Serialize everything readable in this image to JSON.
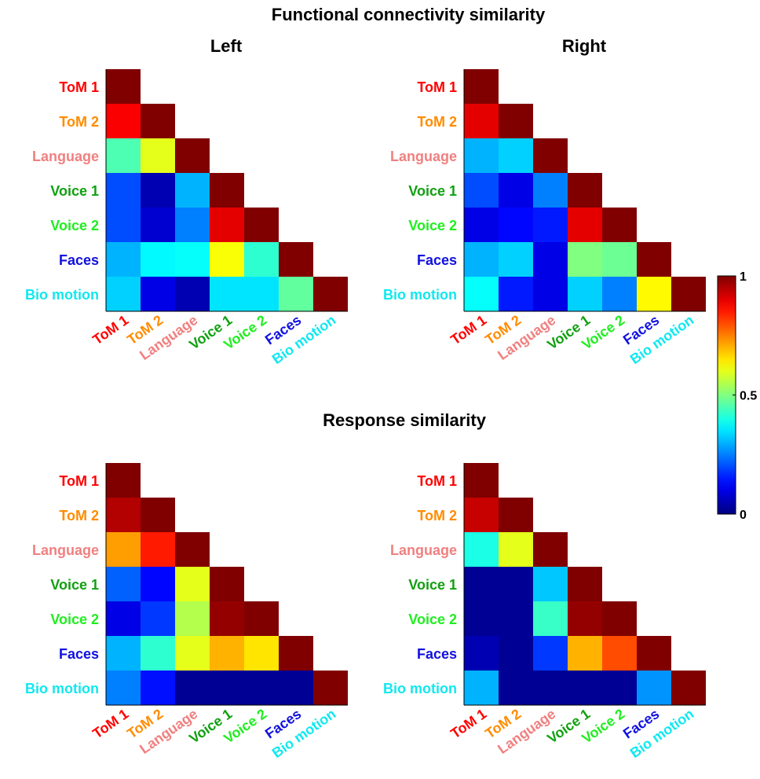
{
  "figure": {
    "title_top": "Functional connectivity similarity",
    "title_bottom": "Response similarity",
    "panel_left": "Left",
    "panel_right": "Right"
  },
  "labels": [
    "ToM 1",
    "ToM 2",
    "Language",
    "Voice 1",
    "Voice 2",
    "Faces",
    "Bio motion"
  ],
  "label_colors": [
    "#ff0000",
    "#ff8c00",
    "#f08080",
    "#10a010",
    "#20ee20",
    "#1010e0",
    "#10e8f0"
  ],
  "colorbar": {
    "min": 0,
    "max": 1,
    "ticks": [
      "0",
      "0.5",
      "1"
    ],
    "colormap": "jet"
  },
  "chart_data": [
    {
      "type": "heatmap",
      "title": "Left",
      "group": "Functional connectivity similarity",
      "rows": [
        "ToM 1",
        "ToM 2",
        "Language",
        "Voice 1",
        "Voice 2",
        "Faces",
        "Bio motion"
      ],
      "cols": [
        "ToM 1",
        "ToM 2",
        "Language",
        "Voice 1",
        "Voice 2",
        "Faces",
        "Bio motion"
      ],
      "zlim": [
        0,
        1
      ],
      "values": [
        [
          1.0
        ],
        [
          0.88,
          1.0
        ],
        [
          0.45,
          0.6,
          1.0
        ],
        [
          0.2,
          0.05,
          0.3,
          1.0
        ],
        [
          0.2,
          0.08,
          0.25,
          0.9,
          1.0
        ],
        [
          0.3,
          0.37,
          0.38,
          0.62,
          0.42,
          1.0
        ],
        [
          0.33,
          0.1,
          0.05,
          0.35,
          0.35,
          0.47,
          1.0
        ]
      ]
    },
    {
      "type": "heatmap",
      "title": "Right",
      "group": "Functional connectivity similarity",
      "rows": [
        "ToM 1",
        "ToM 2",
        "Language",
        "Voice 1",
        "Voice 2",
        "Faces",
        "Bio motion"
      ],
      "cols": [
        "ToM 1",
        "ToM 2",
        "Language",
        "Voice 1",
        "Voice 2",
        "Faces",
        "Bio motion"
      ],
      "zlim": [
        0,
        1
      ],
      "values": [
        [
          1.0
        ],
        [
          0.9,
          1.0
        ],
        [
          0.3,
          0.33,
          1.0
        ],
        [
          0.2,
          0.1,
          0.25,
          1.0
        ],
        [
          0.1,
          0.13,
          0.15,
          0.9,
          1.0
        ],
        [
          0.3,
          0.33,
          0.1,
          0.5,
          0.48,
          1.0
        ],
        [
          0.38,
          0.15,
          0.1,
          0.33,
          0.25,
          0.63,
          1.0
        ]
      ]
    },
    {
      "type": "heatmap",
      "title": "Left",
      "group": "Response similarity",
      "rows": [
        "ToM 1",
        "ToM 2",
        "Language",
        "Voice 1",
        "Voice 2",
        "Faces",
        "Bio motion"
      ],
      "cols": [
        "ToM 1",
        "ToM 2",
        "Language",
        "Voice 1",
        "Voice 2",
        "Faces",
        "Bio motion"
      ],
      "zlim": [
        0,
        1
      ],
      "values": [
        [
          1.0
        ],
        [
          0.95,
          1.0
        ],
        [
          0.72,
          0.85,
          1.0
        ],
        [
          0.22,
          0.13,
          0.6,
          1.0
        ],
        [
          0.1,
          0.18,
          0.55,
          0.98,
          1.0
        ],
        [
          0.3,
          0.42,
          0.6,
          0.7,
          0.65,
          1.0
        ],
        [
          0.25,
          0.14,
          0.02,
          0.02,
          0.02,
          0.02,
          1.0
        ]
      ]
    },
    {
      "type": "heatmap",
      "title": "Right",
      "group": "Response similarity",
      "rows": [
        "ToM 1",
        "ToM 2",
        "Language",
        "Voice 1",
        "Voice 2",
        "Faces",
        "Bio motion"
      ],
      "cols": [
        "ToM 1",
        "ToM 2",
        "Language",
        "Voice 1",
        "Voice 2",
        "Faces",
        "Bio motion"
      ],
      "zlim": [
        0,
        1
      ],
      "values": [
        [
          1.0
        ],
        [
          0.93,
          1.0
        ],
        [
          0.4,
          0.6,
          1.0
        ],
        [
          0.02,
          0.02,
          0.32,
          1.0
        ],
        [
          0.02,
          0.02,
          0.43,
          0.98,
          1.0
        ],
        [
          0.05,
          0.02,
          0.18,
          0.7,
          0.8,
          1.0
        ],
        [
          0.3,
          0.02,
          0.02,
          0.02,
          0.02,
          0.27,
          1.0
        ]
      ]
    }
  ]
}
